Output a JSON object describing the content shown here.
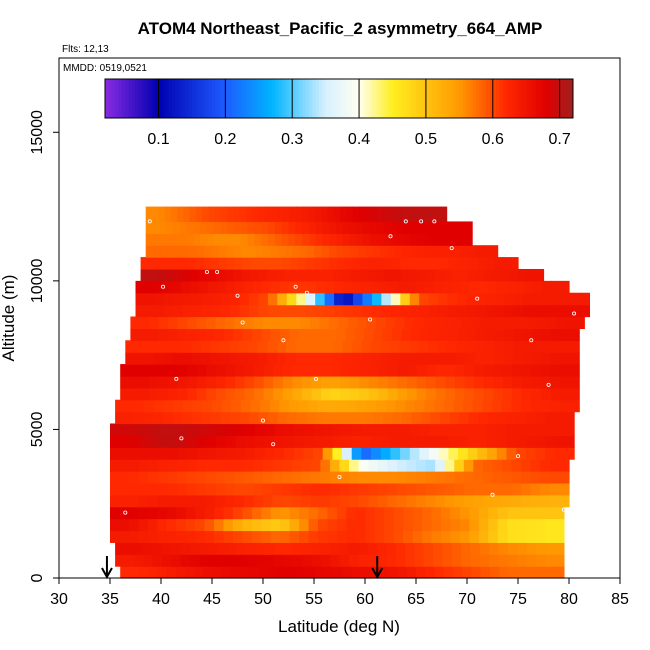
{
  "chart_data": {
    "type": "heatmap",
    "title": "ATOM4 Northeast_Pacific_2 asymmetry_664_AMP",
    "flights_note": "Flts: 12,13",
    "date_note": "MMDD: 0519,0521",
    "xlabel": "Latitude (deg N)",
    "ylabel": "Altitude (m)",
    "xlim": [
      30,
      85
    ],
    "ylim": [
      0,
      17500
    ],
    "x_ticks": [
      "30",
      "35",
      "40",
      "45",
      "50",
      "55",
      "60",
      "65",
      "70",
      "75",
      "80",
      "85"
    ],
    "y_ticks": [
      "0",
      "5000",
      "10000",
      "15000"
    ],
    "colorbar": {
      "range": [
        0.02,
        0.72
      ],
      "tick_values": [
        0.1,
        0.2,
        0.3,
        0.4,
        0.5,
        0.6,
        0.7
      ],
      "tick_labels": [
        "0.1",
        "0.2",
        "0.3",
        "0.4",
        "0.5",
        "0.6",
        "0.7"
      ],
      "color_stops": [
        {
          "value": 0.02,
          "color": "#8a2be2"
        },
        {
          "value": 0.1,
          "color": "#0000b0"
        },
        {
          "value": 0.2,
          "color": "#1e5cff"
        },
        {
          "value": 0.27,
          "color": "#00b4ff"
        },
        {
          "value": 0.35,
          "color": "#d8f0ff"
        },
        {
          "value": 0.4,
          "color": "#fffff0"
        },
        {
          "value": 0.45,
          "color": "#ffee20"
        },
        {
          "value": 0.55,
          "color": "#ff9900"
        },
        {
          "value": 0.62,
          "color": "#ff2800"
        },
        {
          "value": 0.68,
          "color": "#e00000"
        },
        {
          "value": 0.72,
          "color": "#a02020"
        }
      ]
    },
    "layers": [
      {
        "alt_bottom": 0,
        "alt_top": 400,
        "lat_start": 36,
        "lat_end": 79.5,
        "values": [
          0.62,
          0.64,
          0.66,
          0.67,
          0.68,
          0.67,
          0.66,
          0.65,
          0.62,
          0.6,
          0.58,
          0.58
        ]
      },
      {
        "alt_bottom": 400,
        "alt_top": 800,
        "lat_start": 35.5,
        "lat_end": 79.5,
        "values": [
          0.64,
          0.66,
          0.68,
          0.68,
          0.67,
          0.66,
          0.63,
          0.62,
          0.6,
          0.58,
          0.57,
          0.56
        ]
      },
      {
        "alt_bottom": 800,
        "alt_top": 1200,
        "lat_start": 35.5,
        "lat_end": 79.5,
        "values": [
          0.66,
          0.65,
          0.64,
          0.63,
          0.62,
          0.63,
          0.64,
          0.62,
          0.6,
          0.58,
          0.56,
          0.55
        ]
      },
      {
        "alt_bottom": 1200,
        "alt_top": 1600,
        "lat_start": 35,
        "lat_end": 79.5,
        "values": [
          0.64,
          0.63,
          0.62,
          0.6,
          0.58,
          0.61,
          0.62,
          0.6,
          0.57,
          0.55,
          0.47,
          0.46
        ]
      },
      {
        "alt_bottom": 1600,
        "alt_top": 2000,
        "lat_start": 35,
        "lat_end": 79.5,
        "values": [
          0.66,
          0.62,
          0.6,
          0.52,
          0.49,
          0.6,
          0.62,
          0.6,
          0.58,
          0.56,
          0.47,
          0.46
        ]
      },
      {
        "alt_bottom": 2000,
        "alt_top": 2400,
        "lat_start": 35,
        "lat_end": 79.5,
        "values": [
          0.68,
          0.67,
          0.64,
          0.6,
          0.55,
          0.58,
          0.62,
          0.6,
          0.58,
          0.55,
          0.5,
          0.5
        ]
      },
      {
        "alt_bottom": 2400,
        "alt_top": 2800,
        "lat_start": 35,
        "lat_end": 80,
        "values": [
          0.63,
          0.64,
          0.64,
          0.62,
          0.6,
          0.61,
          0.6,
          0.58,
          0.56,
          0.54,
          0.53,
          0.52
        ]
      },
      {
        "alt_bottom": 2800,
        "alt_top": 3200,
        "lat_start": 35,
        "lat_end": 80,
        "values": [
          0.62,
          0.62,
          0.61,
          0.6,
          0.61,
          0.62,
          0.61,
          0.6,
          0.59,
          0.58,
          0.58,
          0.56
        ]
      },
      {
        "alt_bottom": 3200,
        "alt_top": 3600,
        "lat_start": 35,
        "lat_end": 80,
        "values": [
          0.62,
          0.61,
          0.6,
          0.59,
          0.58,
          0.57,
          0.56,
          0.56,
          0.57,
          0.58,
          0.59,
          0.6
        ]
      },
      {
        "alt_bottom": 3600,
        "alt_top": 4000,
        "lat_start": 35,
        "lat_end": 80,
        "values": [
          0.64,
          0.63,
          0.62,
          0.62,
          0.61,
          0.6,
          0.4,
          0.35,
          0.33,
          0.58,
          0.6,
          0.62
        ]
      },
      {
        "alt_bottom": 4000,
        "alt_top": 4400,
        "lat_start": 35,
        "lat_end": 80.5,
        "values": [
          0.66,
          0.66,
          0.65,
          0.64,
          0.62,
          0.6,
          0.2,
          0.3,
          0.4,
          0.5,
          0.6,
          0.62
        ]
      },
      {
        "alt_bottom": 4400,
        "alt_top": 4800,
        "lat_start": 35,
        "lat_end": 80.5,
        "values": [
          0.68,
          0.7,
          0.68,
          0.66,
          0.65,
          0.64,
          0.63,
          0.64,
          0.64,
          0.63,
          0.64,
          0.65
        ]
      },
      {
        "alt_bottom": 4800,
        "alt_top": 5200,
        "lat_start": 35,
        "lat_end": 80.5,
        "values": [
          0.69,
          0.7,
          0.69,
          0.68,
          0.66,
          0.65,
          0.64,
          0.64,
          0.63,
          0.63,
          0.64,
          0.64
        ]
      },
      {
        "alt_bottom": 5200,
        "alt_top": 5600,
        "lat_start": 35.5,
        "lat_end": 80.5,
        "values": [
          0.63,
          0.62,
          0.61,
          0.6,
          0.58,
          0.57,
          0.57,
          0.58,
          0.6,
          0.62,
          0.63,
          0.64
        ]
      },
      {
        "alt_bottom": 5600,
        "alt_top": 6000,
        "lat_start": 35.5,
        "lat_end": 81,
        "values": [
          0.62,
          0.61,
          0.6,
          0.58,
          0.55,
          0.53,
          0.54,
          0.56,
          0.58,
          0.6,
          0.62,
          0.63
        ]
      },
      {
        "alt_bottom": 6000,
        "alt_top": 6400,
        "lat_start": 36,
        "lat_end": 81,
        "values": [
          0.64,
          0.63,
          0.6,
          0.58,
          0.54,
          0.48,
          0.5,
          0.55,
          0.58,
          0.6,
          0.62,
          0.64
        ]
      },
      {
        "alt_bottom": 6400,
        "alt_top": 6800,
        "lat_start": 36,
        "lat_end": 81,
        "values": [
          0.66,
          0.65,
          0.63,
          0.6,
          0.56,
          0.54,
          0.56,
          0.58,
          0.6,
          0.62,
          0.64,
          0.65
        ]
      },
      {
        "alt_bottom": 6800,
        "alt_top": 7200,
        "lat_start": 36,
        "lat_end": 81,
        "values": [
          0.68,
          0.68,
          0.66,
          0.64,
          0.62,
          0.62,
          0.63,
          0.64,
          0.62,
          0.64,
          0.65,
          0.66
        ]
      },
      {
        "alt_bottom": 7200,
        "alt_top": 7600,
        "lat_start": 36.5,
        "lat_end": 81,
        "values": [
          0.65,
          0.66,
          0.65,
          0.64,
          0.62,
          0.62,
          0.63,
          0.64,
          0.64,
          0.63,
          0.64,
          0.65
        ]
      },
      {
        "alt_bottom": 7600,
        "alt_top": 8000,
        "lat_start": 36.5,
        "lat_end": 81,
        "values": [
          0.62,
          0.62,
          0.61,
          0.6,
          0.58,
          0.58,
          0.6,
          0.61,
          0.62,
          0.63,
          0.64,
          0.64
        ]
      },
      {
        "alt_bottom": 8000,
        "alt_top": 8400,
        "lat_start": 37,
        "lat_end": 81,
        "values": [
          0.64,
          0.63,
          0.62,
          0.6,
          0.58,
          0.58,
          0.6,
          0.62,
          0.63,
          0.64,
          0.65,
          0.66
        ]
      },
      {
        "alt_bottom": 8400,
        "alt_top": 8800,
        "lat_start": 37,
        "lat_end": 81.5,
        "values": [
          0.62,
          0.6,
          0.58,
          0.56,
          0.56,
          0.58,
          0.6,
          0.62,
          0.63,
          0.64,
          0.64,
          0.65
        ]
      },
      {
        "alt_bottom": 8800,
        "alt_top": 9200,
        "lat_start": 37.5,
        "lat_end": 82,
        "values": [
          0.64,
          0.63,
          0.62,
          0.6,
          0.6,
          0.61,
          0.62,
          0.63,
          0.64,
          0.65,
          0.66,
          0.66
        ]
      },
      {
        "alt_bottom": 9200,
        "alt_top": 9600,
        "lat_start": 37.5,
        "lat_end": 82,
        "values": [
          0.65,
          0.64,
          0.63,
          0.6,
          0.4,
          0.1,
          0.3,
          0.6,
          0.62,
          0.63,
          0.64,
          0.64
        ]
      },
      {
        "alt_bottom": 9600,
        "alt_top": 10000,
        "lat_start": 37.5,
        "lat_end": 80,
        "values": [
          0.68,
          0.66,
          0.64,
          0.62,
          0.61,
          0.62,
          0.63,
          0.64,
          0.63,
          0.62,
          0.63,
          0.64
        ]
      },
      {
        "alt_bottom": 10000,
        "alt_top": 10400,
        "lat_start": 38,
        "lat_end": 77.5,
        "values": [
          0.7,
          0.68,
          0.66,
          0.64,
          0.63,
          0.63,
          0.64,
          0.65,
          0.64,
          0.63,
          0.64,
          0.65
        ]
      },
      {
        "alt_bottom": 10400,
        "alt_top": 10800,
        "lat_start": 38,
        "lat_end": 75,
        "values": [
          0.62,
          0.62,
          0.61,
          0.6,
          0.6,
          0.61,
          0.62,
          0.63,
          0.62,
          0.62,
          0.63,
          0.64
        ]
      },
      {
        "alt_bottom": 10800,
        "alt_top": 11200,
        "lat_start": 38.5,
        "lat_end": 73,
        "values": [
          0.58,
          0.58,
          0.57,
          0.56,
          0.57,
          0.58,
          0.6,
          0.61,
          0.62,
          0.63,
          0.63,
          0.64
        ]
      },
      {
        "alt_bottom": 11200,
        "alt_top": 11600,
        "lat_start": 38.5,
        "lat_end": 70.5,
        "values": [
          0.57,
          0.57,
          0.56,
          0.56,
          0.58,
          0.6,
          0.62,
          0.64,
          0.66,
          0.67,
          0.68,
          0.68
        ]
      },
      {
        "alt_bottom": 11600,
        "alt_top": 12000,
        "lat_start": 38.5,
        "lat_end": 70.5,
        "values": [
          0.56,
          0.57,
          0.58,
          0.59,
          0.6,
          0.62,
          0.64,
          0.66,
          0.67,
          0.68,
          0.68,
          0.68
        ]
      },
      {
        "alt_bottom": 12000,
        "alt_top": 12500,
        "lat_start": 38.5,
        "lat_end": 68,
        "values": [
          0.56,
          0.58,
          0.6,
          0.61,
          0.62,
          0.63,
          0.64,
          0.66,
          0.68,
          0.69,
          0.7,
          0.7
        ]
      }
    ],
    "flight_markers": [
      {
        "lat": 34.7,
        "alt": 200
      },
      {
        "lat": 36.5,
        "alt": 2200
      },
      {
        "lat": 38.9,
        "alt": 12000
      },
      {
        "lat": 40.2,
        "alt": 9800
      },
      {
        "lat": 41.5,
        "alt": 6700
      },
      {
        "lat": 42,
        "alt": 4700
      },
      {
        "lat": 44.5,
        "alt": 10300
      },
      {
        "lat": 45.5,
        "alt": 10300
      },
      {
        "lat": 47.5,
        "alt": 9500
      },
      {
        "lat": 48,
        "alt": 8600
      },
      {
        "lat": 50,
        "alt": 5300
      },
      {
        "lat": 51,
        "alt": 4500
      },
      {
        "lat": 52,
        "alt": 8000
      },
      {
        "lat": 53.2,
        "alt": 9800
      },
      {
        "lat": 54.3,
        "alt": 9600
      },
      {
        "lat": 55.2,
        "alt": 6700
      },
      {
        "lat": 57.5,
        "alt": 3400
      },
      {
        "lat": 60.5,
        "alt": 8700
      },
      {
        "lat": 62.5,
        "alt": 11500
      },
      {
        "lat": 64,
        "alt": 12000
      },
      {
        "lat": 65.5,
        "alt": 12000
      },
      {
        "lat": 66.8,
        "alt": 12000
      },
      {
        "lat": 68.5,
        "alt": 11100
      },
      {
        "lat": 71,
        "alt": 9400
      },
      {
        "lat": 72.5,
        "alt": 2800
      },
      {
        "lat": 75,
        "alt": 4100
      },
      {
        "lat": 76.3,
        "alt": 8000
      },
      {
        "lat": 78,
        "alt": 6500
      },
      {
        "lat": 79.5,
        "alt": 2300
      },
      {
        "lat": 80.5,
        "alt": 8900
      }
    ],
    "arrows": [
      {
        "lat": 34.7
      },
      {
        "lat": 61.2
      }
    ]
  }
}
